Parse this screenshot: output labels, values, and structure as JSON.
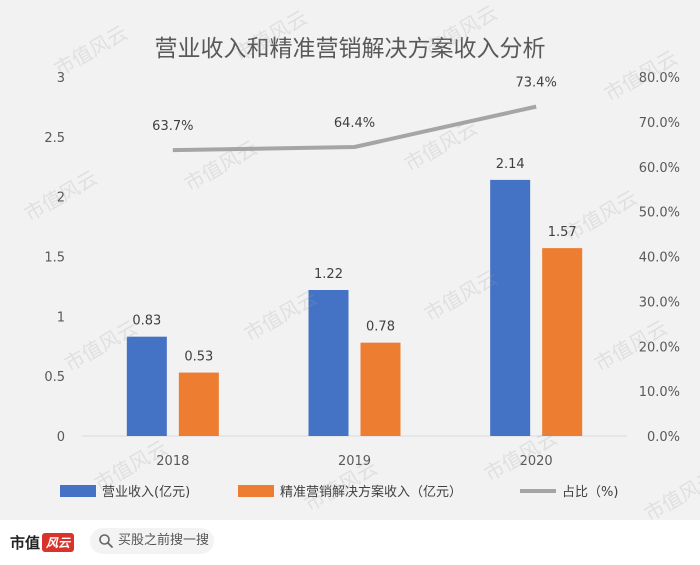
{
  "chart_data": {
    "type": "bar",
    "title": "营业收入和精准营销解决方案收入分析",
    "categories": [
      "2018",
      "2019",
      "2020"
    ],
    "series": [
      {
        "name": "营业收入(亿元)",
        "type": "bar",
        "axis": "left",
        "color": "#4472C4",
        "values": [
          0.83,
          1.22,
          2.14
        ],
        "labels": [
          "0.83",
          "1.22",
          "2.14"
        ]
      },
      {
        "name": "精准营销解决方案收入（亿元）",
        "type": "bar",
        "axis": "left",
        "color": "#ED7D31",
        "values": [
          0.53,
          0.78,
          1.57
        ],
        "labels": [
          "0.53",
          "0.78",
          "1.57"
        ]
      },
      {
        "name": "占比（%)",
        "type": "line",
        "axis": "right",
        "color": "#A5A5A5",
        "values": [
          63.7,
          64.4,
          73.4
        ],
        "labels": [
          "63.7%",
          "64.4%",
          "73.4%"
        ]
      }
    ],
    "y_left": {
      "min": 0,
      "max": 3,
      "ticks": [
        "0",
        "0.5",
        "1",
        "1.5",
        "2",
        "2.5",
        "3"
      ]
    },
    "y_right": {
      "min": 0,
      "max": 80,
      "ticks": [
        "0.0%",
        "10.0%",
        "20.0%",
        "30.0%",
        "40.0%",
        "50.0%",
        "60.0%",
        "70.0%",
        "80.0%"
      ]
    },
    "grid": false,
    "legend_position": "bottom"
  },
  "watermark": "市值风云",
  "footer": {
    "brand": "市值",
    "brand_tag": "风云",
    "search_text": "买股之前搜一搜",
    "search_icon": "search-icon"
  }
}
